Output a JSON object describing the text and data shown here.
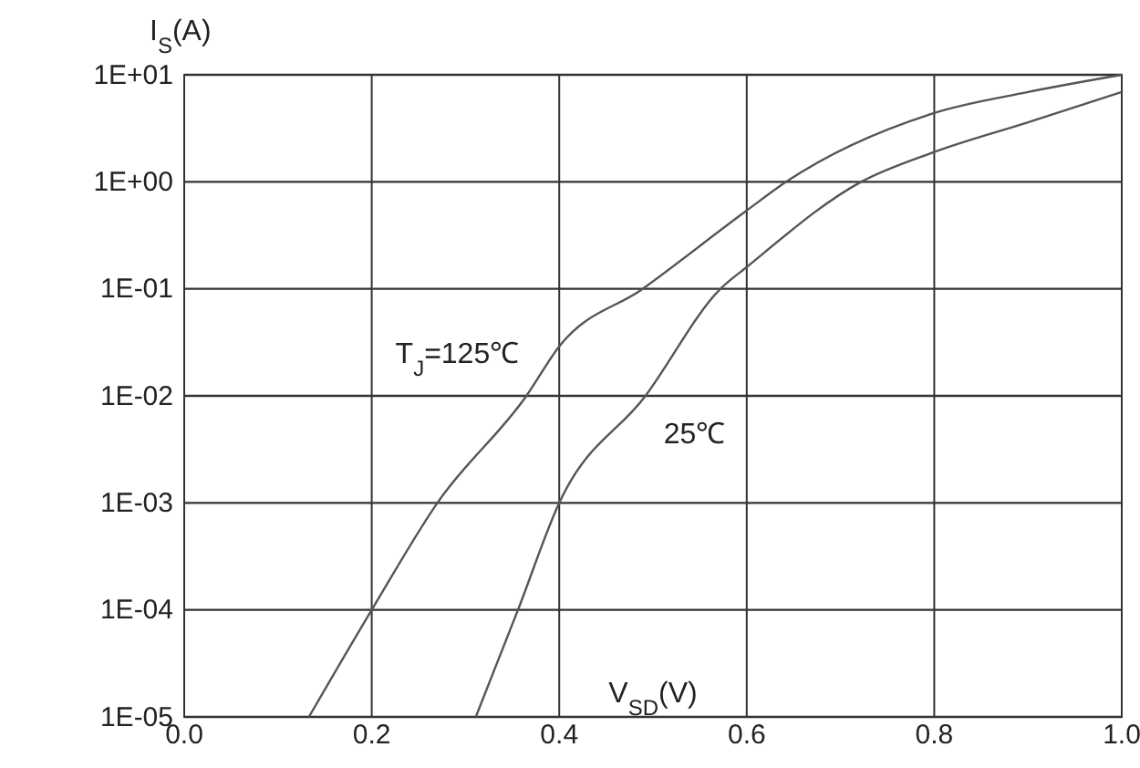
{
  "chart_data": {
    "type": "line",
    "xlabel": "V$_{SD}$(V)",
    "ylabel": "I$_{S}$(A)",
    "log": "y",
    "grid": true,
    "legend": false,
    "marker": "none",
    "line_style": "solid",
    "xlim": [
      0,
      1
    ],
    "xticks": [
      {
        "value": 0,
        "label": "0.0"
      },
      {
        "value": 0.2,
        "label": "0.2"
      },
      {
        "value": 0.4,
        "label": "0.4"
      },
      {
        "value": 0.6,
        "label": "0.6"
      },
      {
        "value": 0.8,
        "label": "0.8"
      },
      {
        "value": 1,
        "label": "1.0"
      }
    ],
    "ylim": [
      1e-05,
      10
    ],
    "yticks": [
      {
        "value": 1e-05,
        "label": "1E-05"
      },
      {
        "value": 0.0001,
        "label": "1E-04"
      },
      {
        "value": 0.001,
        "label": "1E-03"
      },
      {
        "value": 0.01,
        "label": "1E-02"
      },
      {
        "value": 0.1,
        "label": "1E-01"
      },
      {
        "value": 1,
        "label": "1E+00"
      },
      {
        "value": 10,
        "label": "1E+01"
      }
    ],
    "series": [
      {
        "name": "T$_{J}$=125℃",
        "color": "#555555",
        "x": [
          0.133,
          0.2,
          0.27,
          0.365,
          0.4,
          0.489,
          0.6,
          0.642,
          0.8,
          0.9,
          1.0
        ],
        "values": [
          1e-05,
          0.0001,
          0.001,
          0.01,
          0.029,
          0.1,
          0.54,
          1,
          4.4,
          6.9,
          10
        ]
      },
      {
        "name": "25℃",
        "color": "#555555",
        "x": [
          0.311,
          0.356,
          0.4,
          0.492,
          0.572,
          0.6,
          0.722,
          0.8,
          0.9,
          1.0
        ],
        "values": [
          1e-05,
          0.0001,
          0.001,
          0.01,
          0.1,
          0.16,
          1,
          1.9,
          3.6,
          6.9
        ]
      }
    ]
  }
}
